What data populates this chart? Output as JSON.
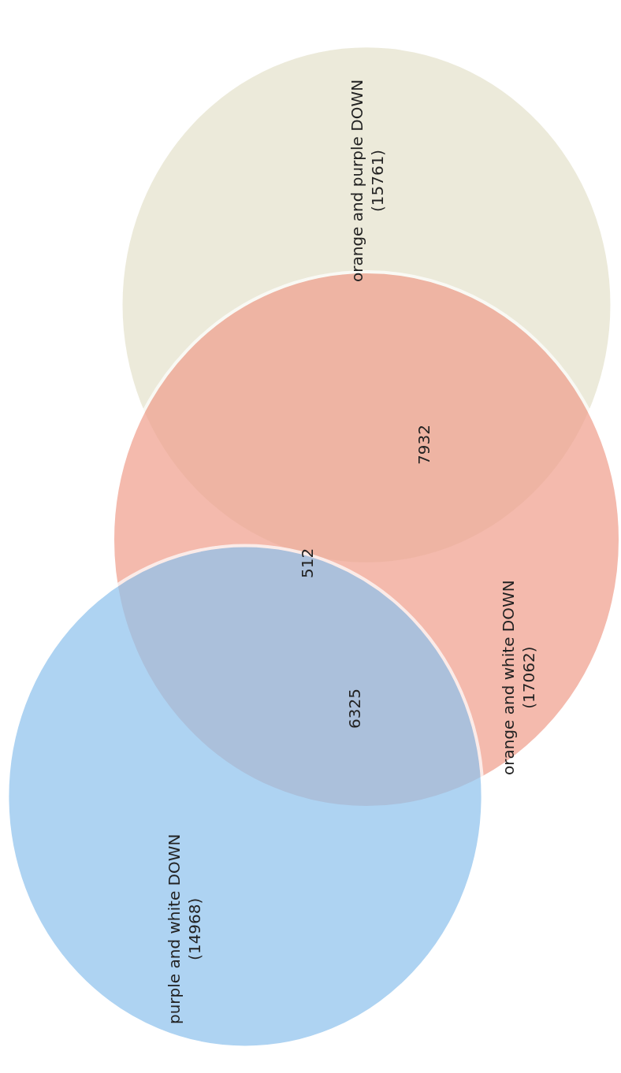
{
  "chart_data": {
    "type": "other",
    "categories": [
      "orange and purple DOWN",
      "orange and white DOWN",
      "purple and white DOWN"
    ],
    "values": [
      15761,
      17062,
      14968
    ],
    "value_labels": [
      "(15761)",
      "(17062)",
      "(14968)"
    ],
    "colors": [
      "#e4e2cc",
      "#f0a08e",
      "#8fc3ee"
    ],
    "annotations": [
      "7932",
      "512",
      "6325"
    ]
  }
}
